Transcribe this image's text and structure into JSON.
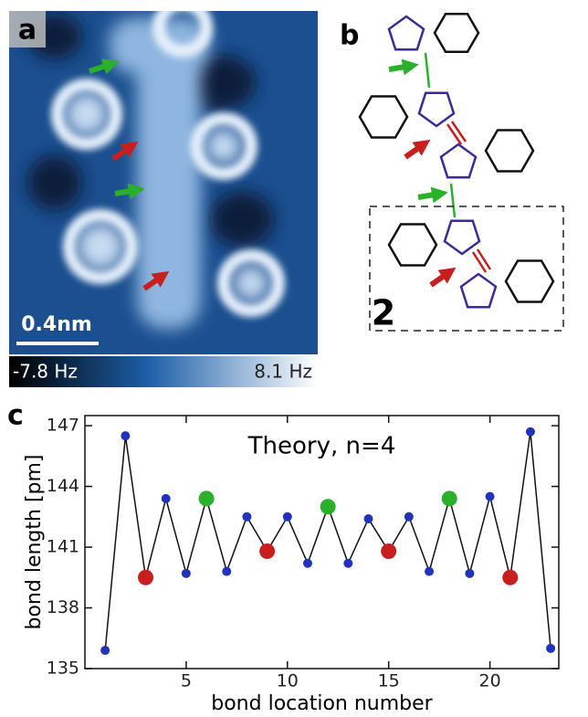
{
  "panel_a": {
    "label": "a",
    "scale_bar": "0.4nm",
    "colorbar_min": "-7.8 Hz",
    "colorbar_max": "8.1 Hz"
  },
  "panel_b": {
    "label": "b",
    "compound": "2"
  },
  "panel_c": {
    "label": "c"
  },
  "chart_data": {
    "type": "line",
    "title": "Theory, n=4",
    "x_label": "bond location number",
    "y_label": "bond length [pm]",
    "x": [
      1,
      2,
      3,
      4,
      5,
      6,
      7,
      8,
      9,
      10,
      11,
      12,
      13,
      14,
      15,
      16,
      17,
      18,
      19,
      20,
      21,
      22,
      23
    ],
    "series": [
      {
        "color": "#2233bb",
        "values": [
          135.9,
          146.5,
          139.5,
          143.4,
          139.7,
          143.4,
          139.8,
          142.5,
          140.8,
          142.5,
          140.2,
          143.0,
          140.2,
          142.4,
          140.8,
          142.5,
          139.8,
          143.4,
          139.7,
          143.5,
          139.5,
          146.7,
          136.0
        ],
        "point_colors": [
          "#2233bb",
          "#2233bb",
          "#c81e1e",
          "#2233bb",
          "#2233bb",
          "#2ab02a",
          "#2233bb",
          "#2233bb",
          "#c81e1e",
          "#2233bb",
          "#2233bb",
          "#2ab02a",
          "#2233bb",
          "#2233bb",
          "#c81e1e",
          "#2233bb",
          "#2233bb",
          "#2ab02a",
          "#2233bb",
          "#2233bb",
          "#c81e1e",
          "#2233bb",
          "#2233bb"
        ]
      }
    ],
    "xlim": [
      0,
      23.4
    ],
    "ylim": [
      135,
      147.5
    ],
    "xticks": [
      5,
      10,
      15,
      20
    ],
    "yticks": [
      135,
      138,
      141,
      144,
      147
    ]
  }
}
